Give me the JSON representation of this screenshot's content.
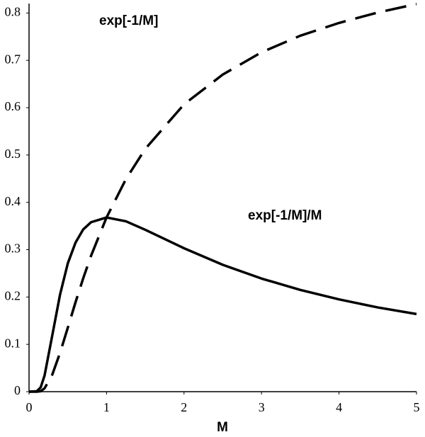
{
  "chart_data": {
    "type": "line",
    "x_label": "M",
    "x": [
      0,
      0.1,
      0.15,
      0.2,
      0.3,
      0.4,
      0.5,
      0.6,
      0.7,
      0.8,
      1,
      1.25,
      1.5,
      2,
      2.5,
      3,
      3.5,
      4,
      4.5,
      5
    ],
    "series": [
      {
        "name": "exp[-1/M]",
        "color": "#000000",
        "line_style": "dashed",
        "values": [
          0,
          0,
          0.001,
          0.007,
          0.036,
          0.082,
          0.135,
          0.189,
          0.24,
          0.287,
          0.368,
          0.449,
          0.513,
          0.607,
          0.67,
          0.717,
          0.752,
          0.779,
          0.801,
          0.819
        ]
      },
      {
        "name": "exp[-1/M]/M",
        "color": "#000000",
        "line_style": "solid",
        "values": [
          0,
          0.001,
          0.009,
          0.034,
          0.119,
          0.205,
          0.271,
          0.315,
          0.343,
          0.358,
          0.368,
          0.36,
          0.342,
          0.303,
          0.268,
          0.239,
          0.215,
          0.195,
          0.178,
          0.164
        ]
      }
    ],
    "xlim": [
      0,
      5
    ],
    "ylim": [
      0,
      0.82
    ],
    "xticks": [
      0,
      1,
      2,
      3,
      4,
      5
    ],
    "yticks": [
      0,
      0.1,
      0.2,
      0.3,
      0.4,
      0.5,
      0.6,
      0.7,
      0.8
    ],
    "grid": false
  }
}
